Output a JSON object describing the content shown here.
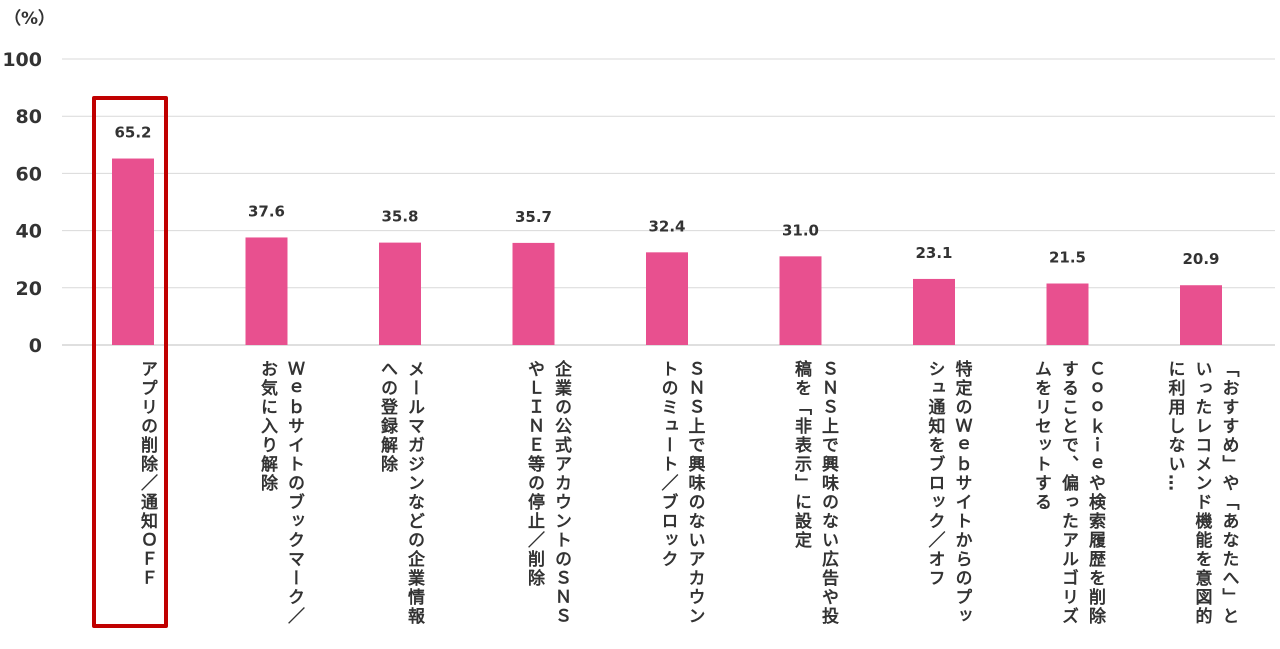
{
  "chart_data": {
    "type": "bar",
    "unit_label": "（%）",
    "categories": [
      "アプリの削除／通知ＯＦＦ",
      "Ｗｅｂサイトのブックマーク／お気に入り解除",
      "メールマガジンなどの企業情報への登録解除",
      "企業の公式アカウントのＳＮＳやＬＩＮＥ等の停止／削除",
      "ＳＮＳ上で興味のないアカウントのミュート／ブロック",
      "ＳＮＳ上で興味のない広告や投稿を「非表示」に設定",
      "特定のＷｅｂサイトからのプッシュ通知をブロック／オフ",
      "Ｃｏｏｋｉｅや検索履歴を削除することで、偏ったアルゴリズムをリセットする",
      "「おすすめ」や「あなたへ」といったレコメンド機能を意図的に利用しない…"
    ],
    "values": [
      65.2,
      37.6,
      35.8,
      35.7,
      32.4,
      31.0,
      23.1,
      21.5,
      20.9
    ],
    "value_labels": [
      "65.2",
      "37.6",
      "35.8",
      "35.7",
      "32.4",
      "31.0",
      "23.1",
      "21.5",
      "20.9"
    ],
    "yticks": [
      "0",
      "20",
      "40",
      "60",
      "80",
      "100"
    ],
    "ylim": [
      0,
      100
    ],
    "grid": true,
    "bar_color": "#e8508f",
    "highlight_color": "#c00000",
    "highlight_category_index": 0
  }
}
